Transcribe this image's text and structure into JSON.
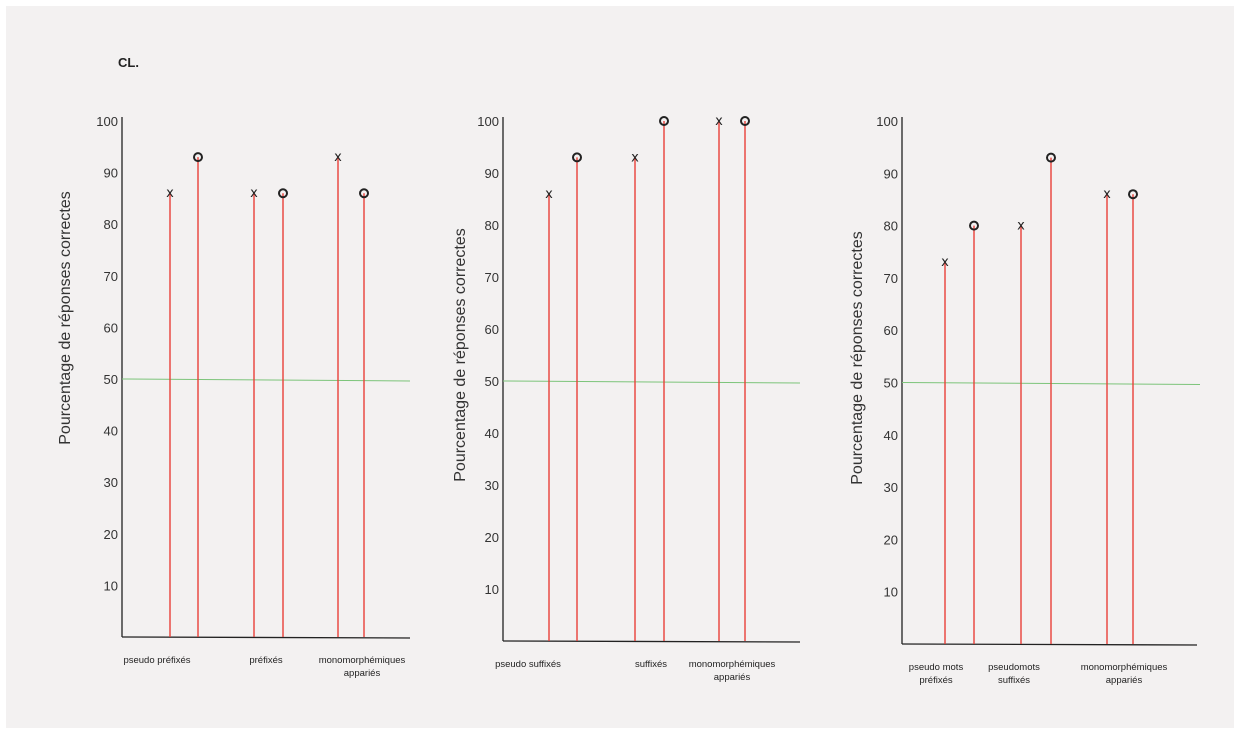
{
  "page_label": "CL.",
  "chart_data": [
    {
      "type": "scatter",
      "ylabel": "Pourcentage de réponses correctes",
      "ylim": [
        0,
        100
      ],
      "yticks": [
        10,
        20,
        30,
        40,
        50,
        60,
        70,
        80,
        90,
        100
      ],
      "reference_line": 50,
      "categories": [
        "pseudo préfixés",
        "préfixés",
        "monomorphémiques appariés"
      ],
      "series": [
        {
          "marker": "x",
          "values": [
            86,
            86,
            93
          ]
        },
        {
          "marker": "o",
          "values": [
            93,
            86,
            86
          ]
        }
      ],
      "colors": {
        "stem": "#e8403a",
        "reference": "#7cc47a",
        "axis": "#222222"
      }
    },
    {
      "type": "scatter",
      "ylabel": "Pourcentage de réponses correctes",
      "ylim": [
        0,
        100
      ],
      "yticks": [
        10,
        20,
        30,
        40,
        50,
        60,
        70,
        80,
        90,
        100
      ],
      "reference_line": 50,
      "categories": [
        "pseudo suffixés",
        "suffixés",
        "monomorphémiques appariés"
      ],
      "series": [
        {
          "marker": "x",
          "values": [
            86,
            93,
            100
          ]
        },
        {
          "marker": "o",
          "values": [
            93,
            100,
            100
          ]
        }
      ],
      "colors": {
        "stem": "#e8403a",
        "reference": "#7cc47a",
        "axis": "#222222"
      }
    },
    {
      "type": "scatter",
      "ylabel": "Pourcentage de réponses correctes",
      "ylim": [
        0,
        100
      ],
      "yticks": [
        10,
        20,
        30,
        40,
        50,
        60,
        70,
        80,
        90,
        100
      ],
      "reference_line": 50,
      "categories": [
        "pseudo mots préfixés",
        "pseudomots suffixés",
        "monomorphémiques appariés"
      ],
      "series": [
        {
          "marker": "x",
          "values": [
            73,
            80,
            86
          ]
        },
        {
          "marker": "o",
          "values": [
            80,
            93,
            86
          ]
        }
      ],
      "colors": {
        "stem": "#e8403a",
        "reference": "#7cc47a",
        "axis": "#222222"
      }
    }
  ]
}
